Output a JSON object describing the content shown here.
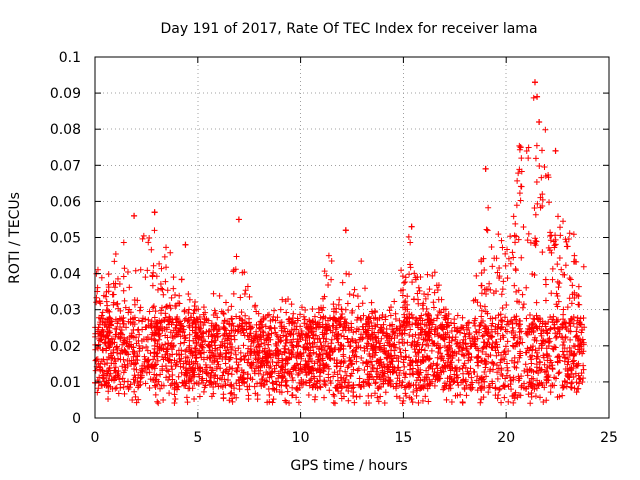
{
  "colors": {
    "points": "#ff0000",
    "grid": "#a0a0a0",
    "frame": "#000000",
    "background": "#ffffff"
  },
  "chart_data": {
    "type": "scatter",
    "title": "Day 191 of 2017, Rate Of TEC Index for receiver lama",
    "xlabel": "GPS time / hours",
    "ylabel": "ROTI / TECUs",
    "xlim": [
      0,
      25
    ],
    "ylim": [
      0,
      0.1
    ],
    "xticks": [
      0,
      5,
      10,
      15,
      20,
      25
    ],
    "yticks": [
      0,
      0.01,
      0.02,
      0.03,
      0.04,
      0.05,
      0.06,
      0.07,
      0.08,
      0.09,
      0.1
    ],
    "xtick_labels": [
      "0",
      "5",
      "10",
      "15",
      "20",
      "25"
    ],
    "ytick_labels": [
      "0",
      "0.01",
      "0.02",
      "0.03",
      "0.04",
      "0.05",
      "0.06",
      "0.07",
      "0.08",
      "0.09",
      "0.1"
    ],
    "grid": true,
    "marker": "plus",
    "series": [
      {
        "name": "ROTI",
        "x_range": [
          0,
          23.8
        ],
        "baseline_band": [
          0.008,
          0.028
        ],
        "notable_points": [
          {
            "x": 1.9,
            "y": 0.056
          },
          {
            "x": 2.9,
            "y": 0.057
          },
          {
            "x": 4.4,
            "y": 0.048
          },
          {
            "x": 7.0,
            "y": 0.055
          },
          {
            "x": 12.2,
            "y": 0.052
          },
          {
            "x": 15.4,
            "y": 0.053
          },
          {
            "x": 19.0,
            "y": 0.069
          },
          {
            "x": 20.7,
            "y": 0.075
          },
          {
            "x": 21.4,
            "y": 0.093
          },
          {
            "x": 21.5,
            "y": 0.089
          },
          {
            "x": 21.6,
            "y": 0.082
          },
          {
            "x": 22.4,
            "y": 0.074
          }
        ]
      }
    ]
  }
}
